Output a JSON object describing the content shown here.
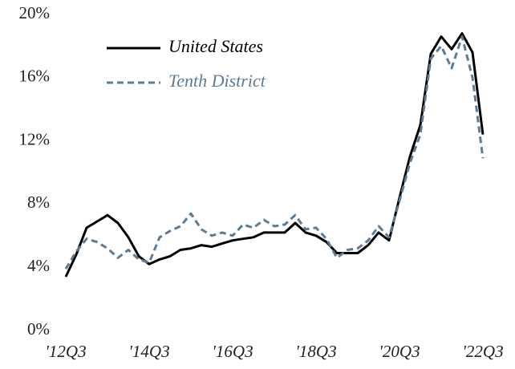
{
  "chart_data": {
    "type": "line",
    "categories": [
      "'12Q3",
      null,
      null,
      null,
      null,
      null,
      null,
      null,
      "'14Q3",
      null,
      null,
      null,
      null,
      null,
      null,
      null,
      "'16Q3",
      null,
      null,
      null,
      null,
      null,
      null,
      null,
      "'18Q3",
      null,
      null,
      null,
      null,
      null,
      null,
      null,
      "'20Q3",
      null,
      null,
      null,
      null,
      null,
      null,
      null,
      "'22Q3"
    ],
    "series": [
      {
        "name": "United States",
        "color": "#000000",
        "dash": false,
        "values": [
          3.4,
          4.8,
          6.5,
          6.9,
          7.3,
          6.8,
          5.9,
          4.7,
          4.2,
          4.5,
          4.7,
          5.1,
          5.2,
          5.4,
          5.3,
          5.5,
          5.7,
          5.8,
          5.9,
          6.2,
          6.2,
          6.2,
          6.8,
          6.2,
          6.0,
          5.6,
          4.9,
          4.9,
          4.9,
          5.4,
          6.2,
          5.7,
          8.4,
          11.0,
          13.0,
          17.5,
          18.6,
          17.8,
          18.8,
          17.6,
          12.4
        ]
      },
      {
        "name": "Tenth District",
        "color": "#5b7b97",
        "dash": true,
        "values": [
          3.9,
          5.0,
          5.8,
          5.6,
          5.2,
          4.6,
          5.1,
          4.5,
          4.3,
          5.9,
          6.3,
          6.6,
          7.4,
          6.4,
          6.0,
          6.2,
          6.0,
          6.7,
          6.5,
          7.0,
          6.6,
          6.7,
          7.3,
          6.4,
          6.5,
          5.8,
          4.6,
          5.1,
          5.2,
          5.7,
          6.6,
          5.9,
          8.2,
          10.6,
          12.4,
          17.2,
          18.0,
          16.6,
          18.6,
          16.0,
          10.9
        ]
      }
    ],
    "ylim": [
      0,
      20
    ],
    "yticks": [
      {
        "value": 0,
        "label": "0%"
      },
      {
        "value": 4,
        "label": "4%"
      },
      {
        "value": 8,
        "label": "8%"
      },
      {
        "value": 12,
        "label": "12%"
      },
      {
        "value": 16,
        "label": "16%"
      },
      {
        "value": 20,
        "label": "20%"
      }
    ],
    "grid": false,
    "legend": "upper left"
  }
}
